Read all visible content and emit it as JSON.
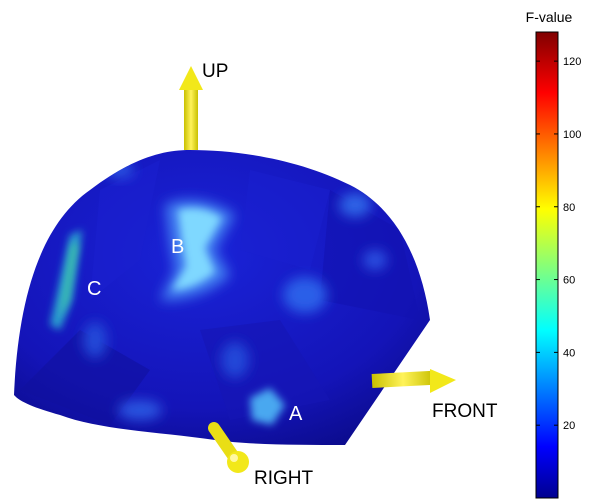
{
  "axes": {
    "up": "UP",
    "front": "FRONT",
    "right": "RIGHT"
  },
  "regions": {
    "a": "A",
    "b": "B",
    "c": "C"
  },
  "colorbar": {
    "title": "F-value",
    "ticks": [
      "120",
      "100",
      "80",
      "60",
      "40",
      "20"
    ],
    "tick_values": [
      120,
      100,
      80,
      60,
      40,
      20
    ],
    "range": [
      0,
      128
    ],
    "colormap": "jet"
  },
  "colors": {
    "arrow": "#f2e81a",
    "head_base": "#1414b4",
    "hotspot": "#7fd8ff",
    "label": "#ffffff"
  }
}
